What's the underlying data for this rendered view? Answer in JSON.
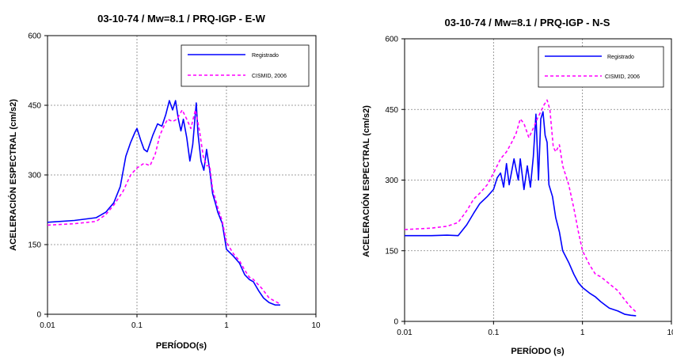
{
  "chart_data": [
    {
      "type": "line",
      "title": "03-10-74 / Mw=8.1 / PRQ-IGP - E-W",
      "xlabel": "PERÍODO(s)",
      "ylabel": "ACELERACIÓN ESPECTRAL (cm/s2)",
      "x_scale": "log",
      "xlim": [
        0.01,
        10
      ],
      "ylim": [
        0,
        600
      ],
      "x_ticks": [
        0.01,
        0.1,
        1,
        10
      ],
      "x_tick_labels": [
        "0.01",
        "0.1",
        "1",
        "10"
      ],
      "y_ticks": [
        0,
        150,
        300,
        450,
        600
      ],
      "y_tick_labels": [
        "0",
        "150",
        "300",
        "450",
        "600"
      ],
      "grid": true,
      "legend_position": "top-right",
      "series": [
        {
          "name": "Registrado",
          "color": "#0000ff",
          "dash": "solid",
          "points": [
            [
              0.01,
              198
            ],
            [
              0.02,
              202
            ],
            [
              0.035,
              208
            ],
            [
              0.045,
              220
            ],
            [
              0.055,
              240
            ],
            [
              0.065,
              275
            ],
            [
              0.075,
              340
            ],
            [
              0.085,
              370
            ],
            [
              0.095,
              392
            ],
            [
              0.1,
              400
            ],
            [
              0.11,
              375
            ],
            [
              0.12,
              355
            ],
            [
              0.13,
              350
            ],
            [
              0.15,
              385
            ],
            [
              0.17,
              410
            ],
            [
              0.19,
              405
            ],
            [
              0.21,
              430
            ],
            [
              0.23,
              460
            ],
            [
              0.25,
              440
            ],
            [
              0.27,
              460
            ],
            [
              0.29,
              420
            ],
            [
              0.31,
              395
            ],
            [
              0.33,
              420
            ],
            [
              0.36,
              380
            ],
            [
              0.39,
              330
            ],
            [
              0.42,
              365
            ],
            [
              0.46,
              455
            ],
            [
              0.48,
              390
            ],
            [
              0.52,
              330
            ],
            [
              0.56,
              310
            ],
            [
              0.6,
              355
            ],
            [
              0.65,
              310
            ],
            [
              0.7,
              260
            ],
            [
              0.75,
              240
            ],
            [
              0.8,
              220
            ],
            [
              0.9,
              195
            ],
            [
              1.0,
              140
            ],
            [
              1.2,
              125
            ],
            [
              1.4,
              110
            ],
            [
              1.6,
              85
            ],
            [
              1.8,
              75
            ],
            [
              2.0,
              70
            ],
            [
              2.3,
              50
            ],
            [
              2.6,
              35
            ],
            [
              3.0,
              25
            ],
            [
              3.5,
              20
            ],
            [
              4.0,
              20
            ]
          ]
        },
        {
          "name": "CISMID, 2006",
          "color": "#ff00ff",
          "dash": "dashed",
          "points": [
            [
              0.01,
              192
            ],
            [
              0.02,
              195
            ],
            [
              0.035,
              200
            ],
            [
              0.045,
              215
            ],
            [
              0.055,
              235
            ],
            [
              0.07,
              265
            ],
            [
              0.085,
              300
            ],
            [
              0.1,
              315
            ],
            [
              0.12,
              325
            ],
            [
              0.14,
              320
            ],
            [
              0.16,
              345
            ],
            [
              0.18,
              385
            ],
            [
              0.2,
              405
            ],
            [
              0.22,
              420
            ],
            [
              0.25,
              415
            ],
            [
              0.28,
              420
            ],
            [
              0.32,
              440
            ],
            [
              0.36,
              420
            ],
            [
              0.4,
              400
            ],
            [
              0.45,
              440
            ],
            [
              0.5,
              395
            ],
            [
              0.55,
              340
            ],
            [
              0.6,
              320
            ],
            [
              0.65,
              320
            ],
            [
              0.7,
              270
            ],
            [
              0.8,
              230
            ],
            [
              0.9,
              200
            ],
            [
              1.0,
              155
            ],
            [
              1.2,
              130
            ],
            [
              1.4,
              115
            ],
            [
              1.6,
              95
            ],
            [
              1.8,
              80
            ],
            [
              2.0,
              75
            ],
            [
              2.5,
              55
            ],
            [
              3.0,
              35
            ],
            [
              3.5,
              28
            ],
            [
              4.0,
              22
            ]
          ]
        }
      ]
    },
    {
      "type": "line",
      "title": "03-10-74 / Mw=8.1 / PRQ-IGP - N-S",
      "xlabel": "PERÍODO (s)",
      "ylabel": "ACELERACIÓN ESPECTRAL (cm/s2)",
      "x_scale": "log",
      "xlim": [
        0.01,
        10
      ],
      "ylim": [
        0,
        600
      ],
      "x_ticks": [
        0.01,
        0.1,
        1,
        10
      ],
      "x_tick_labels": [
        "0.01",
        "0.1",
        "1",
        "10"
      ],
      "y_ticks": [
        0,
        150,
        300,
        450,
        600
      ],
      "y_tick_labels": [
        "0",
        "150",
        "300",
        "450",
        "600"
      ],
      "grid": true,
      "legend_position": "top-right",
      "series": [
        {
          "name": "Registrado",
          "color": "#0000ff",
          "dash": "solid",
          "points": [
            [
              0.01,
              182
            ],
            [
              0.02,
              182
            ],
            [
              0.03,
              183
            ],
            [
              0.04,
              182
            ],
            [
              0.05,
              205
            ],
            [
              0.06,
              230
            ],
            [
              0.07,
              250
            ],
            [
              0.085,
              265
            ],
            [
              0.1,
              280
            ],
            [
              0.11,
              305
            ],
            [
              0.12,
              315
            ],
            [
              0.13,
              285
            ],
            [
              0.14,
              335
            ],
            [
              0.15,
              290
            ],
            [
              0.17,
              345
            ],
            [
              0.19,
              300
            ],
            [
              0.2,
              345
            ],
            [
              0.22,
              280
            ],
            [
              0.24,
              330
            ],
            [
              0.26,
              285
            ],
            [
              0.28,
              350
            ],
            [
              0.3,
              440
            ],
            [
              0.32,
              300
            ],
            [
              0.34,
              430
            ],
            [
              0.36,
              445
            ],
            [
              0.38,
              395
            ],
            [
              0.4,
              380
            ],
            [
              0.42,
              290
            ],
            [
              0.46,
              265
            ],
            [
              0.5,
              220
            ],
            [
              0.55,
              190
            ],
            [
              0.6,
              150
            ],
            [
              0.7,
              125
            ],
            [
              0.8,
              100
            ],
            [
              0.9,
              82
            ],
            [
              1.0,
              72
            ],
            [
              1.2,
              60
            ],
            [
              1.4,
              52
            ],
            [
              1.6,
              42
            ],
            [
              2.0,
              28
            ],
            [
              2.5,
              22
            ],
            [
              3.0,
              15
            ],
            [
              3.5,
              13
            ],
            [
              4.0,
              12
            ]
          ]
        },
        {
          "name": "CISMID, 2006",
          "color": "#ff00ff",
          "dash": "dashed",
          "points": [
            [
              0.01,
              195
            ],
            [
              0.02,
              198
            ],
            [
              0.03,
              202
            ],
            [
              0.04,
              210
            ],
            [
              0.05,
              235
            ],
            [
              0.06,
              260
            ],
            [
              0.07,
              272
            ],
            [
              0.085,
              290
            ],
            [
              0.1,
              315
            ],
            [
              0.12,
              345
            ],
            [
              0.14,
              360
            ],
            [
              0.16,
              380
            ],
            [
              0.18,
              400
            ],
            [
              0.2,
              430
            ],
            [
              0.22,
              420
            ],
            [
              0.25,
              390
            ],
            [
              0.28,
              410
            ],
            [
              0.31,
              430
            ],
            [
              0.34,
              445
            ],
            [
              0.37,
              460
            ],
            [
              0.4,
              470
            ],
            [
              0.43,
              450
            ],
            [
              0.47,
              370
            ],
            [
              0.5,
              360
            ],
            [
              0.55,
              375
            ],
            [
              0.6,
              330
            ],
            [
              0.7,
              290
            ],
            [
              0.8,
              240
            ],
            [
              0.9,
              190
            ],
            [
              1.0,
              150
            ],
            [
              1.2,
              120
            ],
            [
              1.4,
              100
            ],
            [
              1.6,
              95
            ],
            [
              2.0,
              80
            ],
            [
              2.5,
              65
            ],
            [
              3.0,
              45
            ],
            [
              3.5,
              30
            ],
            [
              4.0,
              20
            ]
          ]
        }
      ]
    }
  ]
}
